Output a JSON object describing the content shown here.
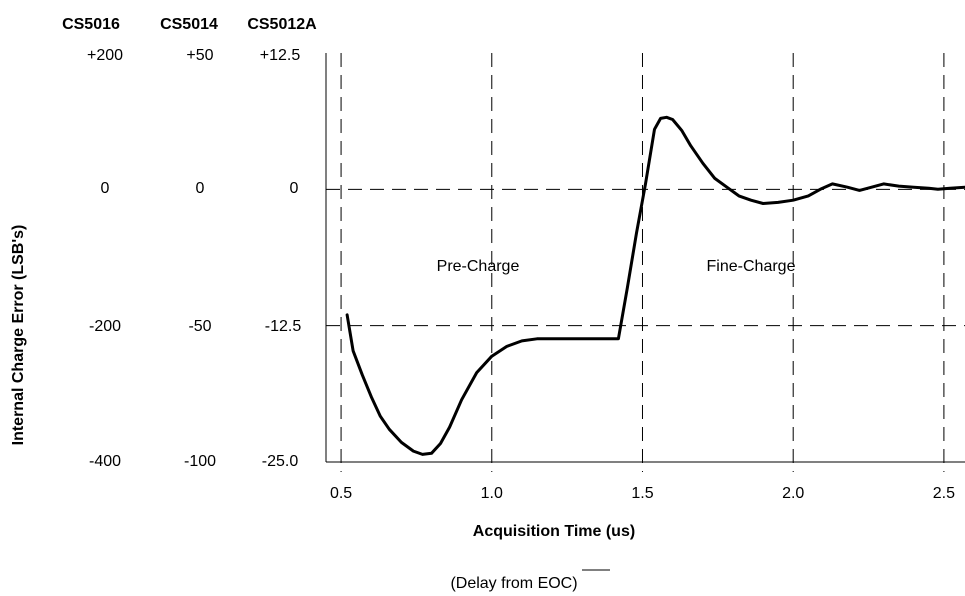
{
  "chart_data": {
    "type": "line",
    "xlabel": "Acquisition Time (us)",
    "x_sublabel": "(Delay from EOC)",
    "ylabel": "Internal Charge Error (LSB's)",
    "xlim": [
      0.45,
      2.57
    ],
    "ylim": [
      -25.0,
      12.5
    ],
    "x_ticks": [
      0.5,
      1.0,
      1.5,
      2.0,
      2.5
    ],
    "x_tick_labels": [
      "0.5",
      "1.0",
      "1.5",
      "2.0",
      "2.5"
    ],
    "grid": true,
    "y_scales": [
      {
        "name": "CS5016",
        "tick_labels": [
          "+200",
          "0",
          "-200",
          "-400"
        ]
      },
      {
        "name": "CS5014",
        "tick_labels": [
          "+50",
          "0",
          "-50",
          "-100"
        ]
      },
      {
        "name": "CS5012A",
        "tick_labels": [
          "+12.5",
          "0",
          "-12.5",
          "-25.0"
        ]
      }
    ],
    "y_ticks": [
      12.5,
      0,
      -12.5,
      -25.0
    ],
    "annotations": [
      {
        "text": "Pre-Charge",
        "x": 0.94,
        "y": -7.0
      },
      {
        "text": "Fine-Charge",
        "x": 1.92,
        "y": -7.0
      }
    ],
    "series": [
      {
        "x": [
          0.52,
          0.54,
          0.57,
          0.6,
          0.63,
          0.66,
          0.7,
          0.74,
          0.77,
          0.8,
          0.83,
          0.86,
          0.9,
          0.95,
          1.0,
          1.05,
          1.1,
          1.15,
          1.25,
          1.35,
          1.42,
          1.45,
          1.48,
          1.51,
          1.54,
          1.56,
          1.58,
          1.6,
          1.63,
          1.66,
          1.7,
          1.74,
          1.78,
          1.82,
          1.86,
          1.9,
          1.95,
          2.0,
          2.05,
          2.09,
          2.13,
          2.18,
          2.22,
          2.26,
          2.3,
          2.35,
          2.4,
          2.45,
          2.48,
          2.52,
          2.57
        ],
        "y": [
          -11.5,
          -14.8,
          -17.0,
          -19.0,
          -20.8,
          -22.0,
          -23.2,
          -24.0,
          -24.3,
          -24.2,
          -23.3,
          -21.8,
          -19.3,
          -16.8,
          -15.3,
          -14.4,
          -13.9,
          -13.7,
          -13.7,
          -13.7,
          -13.7,
          -9.0,
          -4.0,
          0.5,
          5.5,
          6.5,
          6.6,
          6.4,
          5.4,
          4.0,
          2.4,
          1.0,
          0.2,
          -0.6,
          -1.0,
          -1.3,
          -1.2,
          -1.0,
          -0.6,
          0.0,
          0.5,
          0.2,
          -0.1,
          0.2,
          0.5,
          0.3,
          0.2,
          0.1,
          0.0,
          0.1,
          0.2
        ]
      }
    ]
  }
}
